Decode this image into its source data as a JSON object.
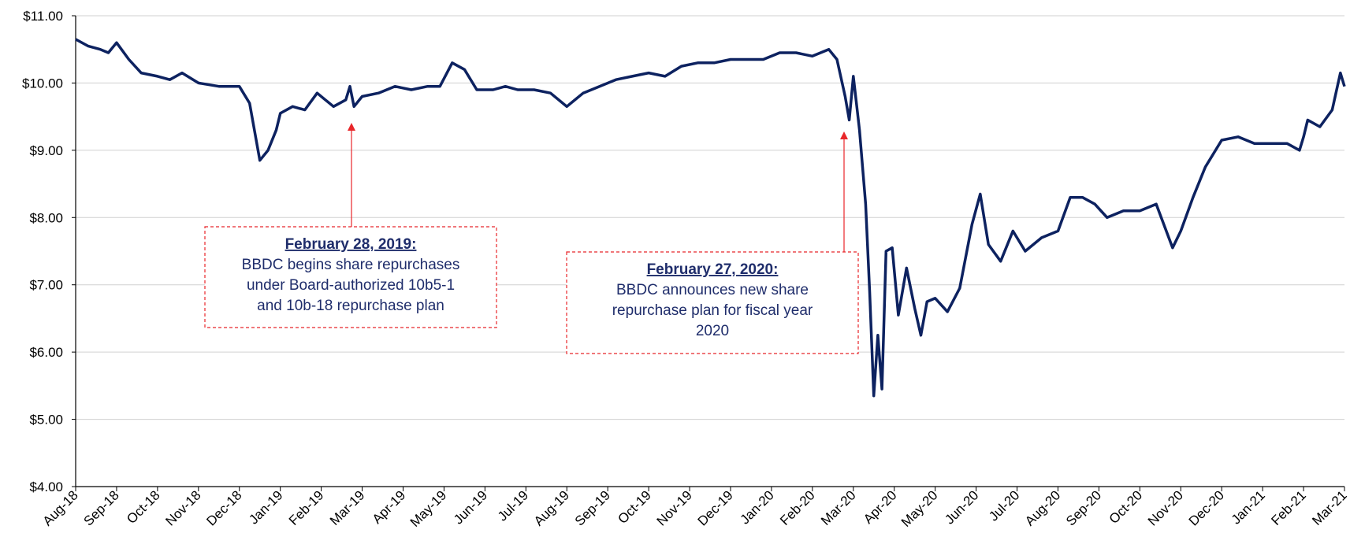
{
  "chart_data": {
    "type": "line",
    "color": "#0d2260",
    "grid": true,
    "xlim": [
      0,
      31
    ],
    "xticks": [
      {
        "value": 0,
        "label": "Aug-18"
      },
      {
        "value": 1,
        "label": "Sep-18"
      },
      {
        "value": 2,
        "label": "Oct-18"
      },
      {
        "value": 3,
        "label": "Nov-18"
      },
      {
        "value": 4,
        "label": "Dec-18"
      },
      {
        "value": 5,
        "label": "Jan-19"
      },
      {
        "value": 6,
        "label": "Feb-19"
      },
      {
        "value": 7,
        "label": "Mar-19"
      },
      {
        "value": 8,
        "label": "Apr-19"
      },
      {
        "value": 9,
        "label": "May-19"
      },
      {
        "value": 10,
        "label": "Jun-19"
      },
      {
        "value": 11,
        "label": "Jul-19"
      },
      {
        "value": 12,
        "label": "Aug-19"
      },
      {
        "value": 13,
        "label": "Sep-19"
      },
      {
        "value": 14,
        "label": "Oct-19"
      },
      {
        "value": 15,
        "label": "Nov-19"
      },
      {
        "value": 16,
        "label": "Dec-19"
      },
      {
        "value": 17,
        "label": "Jan-20"
      },
      {
        "value": 18,
        "label": "Feb-20"
      },
      {
        "value": 19,
        "label": "Mar-20"
      },
      {
        "value": 20,
        "label": "Apr-20"
      },
      {
        "value": 21,
        "label": "May-20"
      },
      {
        "value": 22,
        "label": "Jun-20"
      },
      {
        "value": 23,
        "label": "Jul-20"
      },
      {
        "value": 24,
        "label": "Aug-20"
      },
      {
        "value": 25,
        "label": "Sep-20"
      },
      {
        "value": 26,
        "label": "Oct-20"
      },
      {
        "value": 27,
        "label": "Nov-20"
      },
      {
        "value": 28,
        "label": "Dec-20"
      },
      {
        "value": 29,
        "label": "Jan-21"
      },
      {
        "value": 30,
        "label": "Feb-21"
      },
      {
        "value": 31,
        "label": "Mar-21"
      }
    ],
    "ylim": [
      4,
      11
    ],
    "yticks": [
      {
        "value": 4,
        "label": "$4.00"
      },
      {
        "value": 5,
        "label": "$5.00"
      },
      {
        "value": 6,
        "label": "$6.00"
      },
      {
        "value": 7,
        "label": "$7.00"
      },
      {
        "value": 8,
        "label": "$8.00"
      },
      {
        "value": 9,
        "label": "$9.00"
      },
      {
        "value": 10,
        "label": "$10.00"
      },
      {
        "value": 11,
        "label": "$11.00"
      }
    ],
    "x": [
      0,
      0.3,
      0.6,
      0.8,
      1.0,
      1.3,
      1.6,
      2.0,
      2.3,
      2.6,
      3.0,
      3.5,
      4.0,
      4.25,
      4.5,
      4.7,
      4.9,
      5.0,
      5.3,
      5.6,
      5.9,
      6.1,
      6.3,
      6.6,
      6.7,
      6.8,
      7.0,
      7.4,
      7.8,
      8.2,
      8.6,
      8.9,
      9.2,
      9.5,
      9.8,
      10.2,
      10.5,
      10.8,
      11.2,
      11.6,
      12.0,
      12.4,
      12.8,
      13.2,
      13.6,
      14.0,
      14.4,
      14.8,
      15.2,
      15.6,
      16.0,
      16.4,
      16.8,
      17.2,
      17.6,
      18.0,
      18.4,
      18.6,
      18.8,
      18.9,
      19.0,
      19.15,
      19.3,
      19.4,
      19.5,
      19.6,
      19.7,
      19.8,
      19.95,
      20.1,
      20.3,
      20.5,
      20.65,
      20.8,
      21.0,
      21.3,
      21.6,
      21.9,
      22.1,
      22.3,
      22.6,
      22.9,
      23.2,
      23.6,
      24.0,
      24.3,
      24.6,
      24.9,
      25.2,
      25.6,
      26.0,
      26.4,
      26.8,
      27.0,
      27.3,
      27.6,
      28.0,
      28.4,
      28.8,
      29.2,
      29.6,
      29.9,
      30.0,
      30.1,
      30.4,
      30.7,
      30.9,
      31.0
    ],
    "values": [
      10.65,
      10.55,
      10.5,
      10.45,
      10.6,
      10.35,
      10.15,
      10.1,
      10.05,
      10.15,
      10.0,
      9.95,
      9.95,
      9.7,
      8.85,
      9.0,
      9.3,
      9.55,
      9.65,
      9.6,
      9.85,
      9.75,
      9.65,
      9.75,
      9.95,
      9.65,
      9.8,
      9.85,
      9.95,
      9.9,
      9.95,
      9.95,
      10.3,
      10.2,
      9.9,
      9.9,
      9.95,
      9.9,
      9.9,
      9.85,
      9.65,
      9.85,
      9.95,
      10.05,
      10.1,
      10.15,
      10.1,
      10.25,
      10.3,
      10.3,
      10.35,
      10.35,
      10.35,
      10.45,
      10.45,
      10.4,
      10.5,
      10.35,
      9.8,
      9.45,
      10.1,
      9.3,
      8.2,
      6.9,
      5.35,
      6.25,
      5.45,
      7.5,
      7.55,
      6.55,
      7.25,
      6.65,
      6.25,
      6.75,
      6.8,
      6.6,
      6.95,
      7.9,
      8.35,
      7.6,
      7.35,
      7.8,
      7.5,
      7.7,
      7.8,
      8.3,
      8.3,
      8.2,
      8.0,
      8.1,
      8.1,
      8.2,
      7.55,
      7.8,
      8.3,
      8.75,
      9.15,
      9.2,
      9.1,
      9.1,
      9.1,
      9.0,
      9.2,
      9.45,
      9.35,
      9.6,
      10.15,
      9.95
    ],
    "annotations": [
      {
        "title": "February 28, 2019:",
        "lines": [
          "BBDC begins share repurchases",
          "under Board-authorized 10b5-1",
          "and 10b-18 repurchase plan"
        ]
      },
      {
        "title": "February 27, 2020:",
        "lines": [
          "BBDC announces new share",
          "repurchase plan for fiscal year",
          "2020"
        ]
      }
    ]
  }
}
